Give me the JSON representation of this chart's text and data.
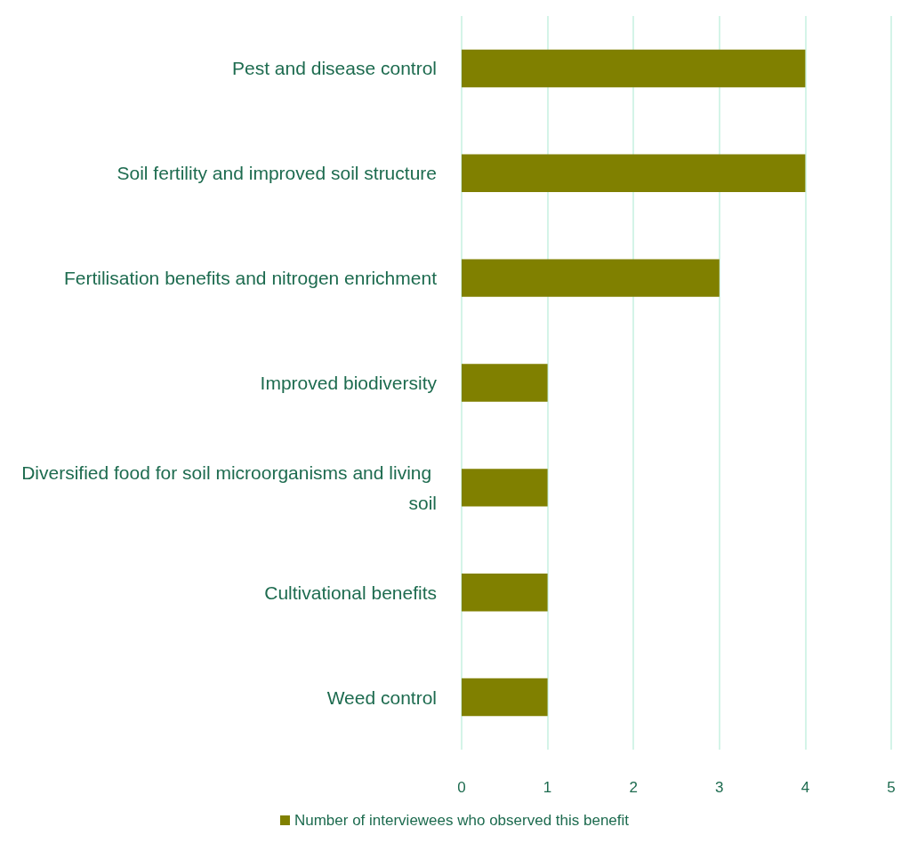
{
  "chart_data": {
    "type": "bar",
    "orientation": "horizontal",
    "categories": [
      "Pest and disease control",
      "Soil fertility and improved soil structure",
      "Fertilisation benefits and nitrogen enrichment",
      "Improved biodiversity",
      "Diversified food for soil microorganisms and living soil",
      "Cultivational benefits",
      "Weed control"
    ],
    "series": [
      {
        "name": "Number of interviewees who observed this benefit",
        "color": "#808000",
        "values": [
          4,
          4,
          3,
          1,
          1,
          1,
          1
        ]
      }
    ],
    "xlim": [
      0,
      5
    ],
    "xticks": [
      0,
      1,
      2,
      3,
      4,
      5
    ],
    "grid": "x",
    "legend": "bottom"
  }
}
